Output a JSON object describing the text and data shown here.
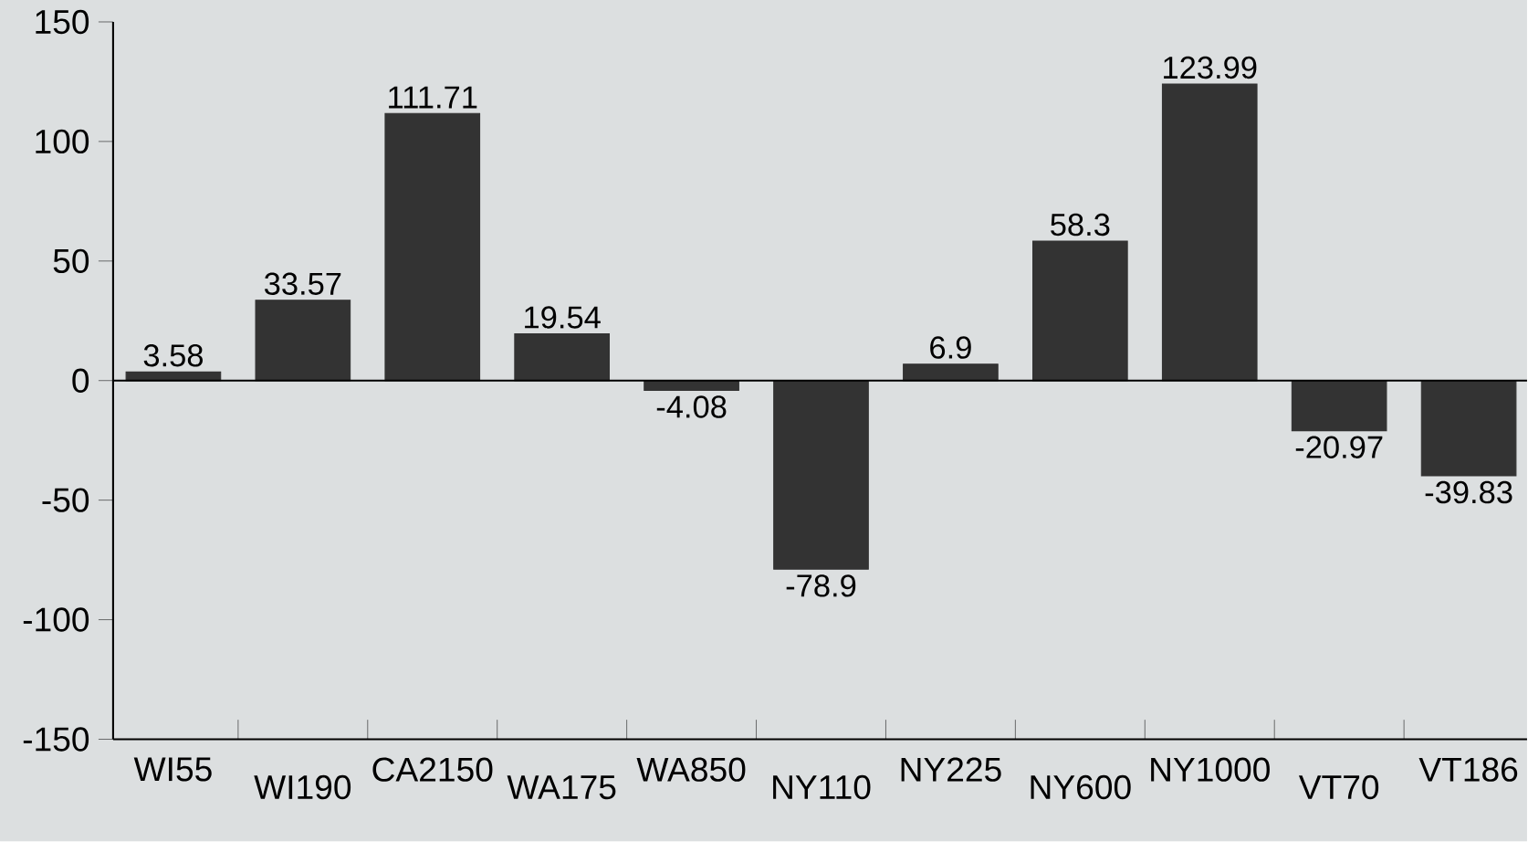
{
  "chart_data": {
    "type": "bar",
    "categories": [
      "WI55",
      "WI190",
      "CA2150",
      "WA175",
      "WA850",
      "NY110",
      "NY225",
      "NY600",
      "NY1000",
      "VT70",
      "VT186"
    ],
    "values": [
      3.58,
      33.57,
      111.71,
      19.54,
      -4.08,
      -78.9,
      6.9,
      58.3,
      123.99,
      -20.97,
      -39.83
    ],
    "color": "#333333",
    "ylim": [
      -150,
      150
    ],
    "yticks": [
      -150,
      -100,
      -50,
      0,
      50,
      100,
      150
    ],
    "data_labels": true
  }
}
